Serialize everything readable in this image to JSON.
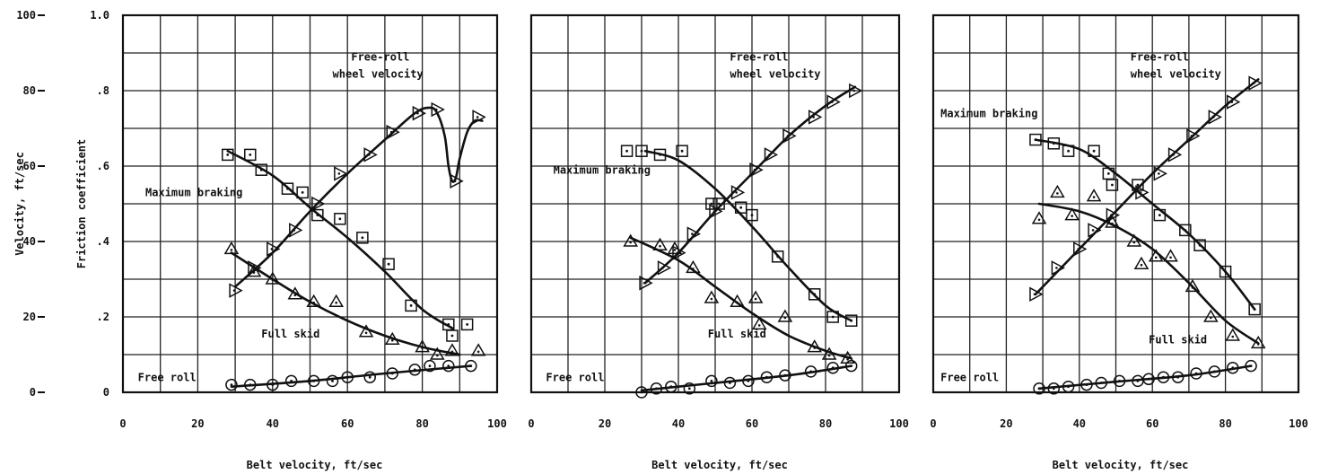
{
  "chart_data": [
    {
      "type": "scatter",
      "panel": 1,
      "xlabel": "Belt velocity, ft/sec",
      "y_left_label": "Velocity, ft/sec",
      "y_right_label": "Friction coefficient",
      "xlim": [
        0,
        100
      ],
      "y_velocity_lim": [
        0,
        100
      ],
      "y_friction_lim": [
        0,
        1.0
      ],
      "x_ticks": [
        "0",
        "20",
        "40",
        "60",
        "80",
        "100"
      ],
      "y_velocity_ticks": [
        "0",
        "20",
        "40",
        "60",
        "80",
        "100"
      ],
      "y_friction_ticks": [
        "0",
        ".2",
        ".4",
        ".6",
        ".8",
        "1.0"
      ],
      "grid": true,
      "annotations": [
        {
          "text": "Free-roll",
          "x": 61,
          "y": 88
        },
        {
          "text": "wheel velocity",
          "x": 56,
          "y": 83.5
        },
        {
          "text": "Maximum braking",
          "x": 6,
          "y": 52
        },
        {
          "text": "Full skid",
          "x": 37,
          "y": 14.5
        },
        {
          "text": "Free roll",
          "x": 4,
          "y": 3
        }
      ],
      "series": [
        {
          "name": "Free-roll wheel velocity",
          "axis": "velocity",
          "marker": "triangle-right",
          "x": [
            30,
            35,
            40,
            46,
            52,
            58,
            66,
            72,
            79,
            84,
            89,
            95
          ],
          "y": [
            27,
            33,
            38,
            43,
            50,
            58,
            63,
            69,
            74,
            75,
            56,
            73
          ]
        },
        {
          "name": "Maximum braking",
          "axis": "friction",
          "marker": "square",
          "x": [
            28,
            34,
            37,
            44,
            48,
            52,
            58,
            64,
            71,
            77,
            87,
            88,
            92
          ],
          "y": [
            0.63,
            0.63,
            0.59,
            0.54,
            0.53,
            0.47,
            0.46,
            0.41,
            0.34,
            0.23,
            0.18,
            0.15,
            0.18
          ]
        },
        {
          "name": "Full skid",
          "axis": "friction",
          "marker": "triangle",
          "x": [
            29,
            35,
            40,
            46,
            51,
            57,
            65,
            72,
            80,
            84,
            88,
            95
          ],
          "y": [
            0.38,
            0.32,
            0.3,
            0.26,
            0.24,
            0.24,
            0.16,
            0.14,
            0.12,
            0.1,
            0.11,
            0.11
          ]
        },
        {
          "name": "Free roll",
          "axis": "friction",
          "marker": "circle",
          "x": [
            29,
            34,
            40,
            45,
            51,
            56,
            60,
            66,
            72,
            78,
            82,
            87,
            93
          ],
          "y": [
            0.02,
            0.02,
            0.02,
            0.03,
            0.03,
            0.03,
            0.04,
            0.04,
            0.05,
            0.06,
            0.07,
            0.07,
            0.07
          ]
        }
      ],
      "curves": [
        {
          "name": "Free-roll wheel velocity curve",
          "axis": "velocity",
          "x": [
            30,
            40,
            50,
            60,
            70,
            78,
            82,
            84,
            86,
            87,
            88,
            89,
            90,
            92,
            94,
            96
          ],
          "y": [
            28,
            37,
            48,
            58,
            67,
            74,
            75.5,
            74,
            68,
            60,
            56,
            57,
            62,
            69,
            72,
            72
          ]
        },
        {
          "name": "Maximum braking curve",
          "axis": "friction",
          "x": [
            28,
            40,
            50,
            60,
            70,
            80,
            88
          ],
          "y": [
            0.64,
            0.575,
            0.49,
            0.41,
            0.32,
            0.22,
            0.17
          ]
        },
        {
          "name": "Full skid curve",
          "axis": "friction",
          "x": [
            29,
            40,
            50,
            60,
            70,
            80,
            90
          ],
          "y": [
            0.37,
            0.3,
            0.24,
            0.19,
            0.15,
            0.12,
            0.1
          ]
        },
        {
          "name": "Free roll curve",
          "axis": "friction",
          "x": [
            29,
            50,
            70,
            93
          ],
          "y": [
            0.015,
            0.03,
            0.05,
            0.07
          ]
        }
      ]
    },
    {
      "type": "scatter",
      "panel": 2,
      "xlabel": "Belt velocity, ft/sec",
      "xlim": [
        0,
        100
      ],
      "y_velocity_lim": [
        0,
        100
      ],
      "y_friction_lim": [
        0,
        1.0
      ],
      "x_ticks": [
        "0",
        "20",
        "40",
        "60",
        "80",
        "100"
      ],
      "grid": true,
      "annotations": [
        {
          "text": "Free-roll",
          "x": 54,
          "y": 88
        },
        {
          "text": "wheel velocity",
          "x": 54,
          "y": 83.5
        },
        {
          "text": "Maximum braking",
          "x": 6,
          "y": 58
        },
        {
          "text": "Full skid",
          "x": 48,
          "y": 14.5
        },
        {
          "text": "Free roll",
          "x": 4,
          "y": 3
        }
      ],
      "series": [
        {
          "name": "Free-roll wheel velocity",
          "axis": "velocity",
          "marker": "triangle-right",
          "x": [
            31,
            36,
            40,
            44,
            50,
            56,
            61,
            65,
            70,
            77,
            82,
            88
          ],
          "y": [
            29,
            33,
            37,
            42,
            48,
            53,
            59,
            63,
            68,
            73,
            77,
            80
          ]
        },
        {
          "name": "Maximum braking",
          "axis": "friction",
          "marker": "square",
          "x": [
            26,
            30,
            35,
            41,
            49,
            51,
            57,
            60,
            67,
            77,
            82,
            87
          ],
          "y": [
            0.64,
            0.64,
            0.63,
            0.64,
            0.5,
            0.5,
            0.49,
            0.47,
            0.36,
            0.26,
            0.2,
            0.19
          ]
        },
        {
          "name": "Full skid",
          "axis": "friction",
          "marker": "triangle",
          "x": [
            27,
            35,
            39,
            44,
            49,
            56,
            61,
            62,
            69,
            77,
            81,
            86
          ],
          "y": [
            0.4,
            0.39,
            0.38,
            0.33,
            0.25,
            0.24,
            0.25,
            0.18,
            0.2,
            0.12,
            0.1,
            0.09
          ]
        },
        {
          "name": "Free roll",
          "axis": "friction",
          "marker": "circle",
          "x": [
            30,
            34,
            38,
            43,
            49,
            54,
            59,
            64,
            69,
            76,
            82,
            87
          ],
          "y": [
            0.0,
            0.01,
            0.015,
            0.01,
            0.03,
            0.025,
            0.03,
            0.04,
            0.045,
            0.055,
            0.065,
            0.07
          ]
        }
      ],
      "curves": [
        {
          "name": "Free-roll wheel velocity curve",
          "axis": "velocity",
          "x": [
            31,
            40,
            50,
            60,
            70,
            80,
            88
          ],
          "y": [
            29,
            37,
            48,
            58,
            68,
            76,
            81
          ]
        },
        {
          "name": "Maximum braking curve",
          "axis": "friction",
          "x": [
            31,
            40,
            50,
            60,
            70,
            80,
            87
          ],
          "y": [
            0.64,
            0.615,
            0.54,
            0.44,
            0.33,
            0.23,
            0.19
          ]
        },
        {
          "name": "Full skid curve",
          "axis": "friction",
          "x": [
            27,
            40,
            50,
            60,
            70,
            80,
            87
          ],
          "y": [
            0.41,
            0.35,
            0.28,
            0.21,
            0.15,
            0.11,
            0.09
          ]
        },
        {
          "name": "Free roll curve",
          "axis": "friction",
          "x": [
            30,
            50,
            70,
            87
          ],
          "y": [
            0.005,
            0.025,
            0.045,
            0.07
          ]
        }
      ]
    },
    {
      "type": "scatter",
      "panel": 3,
      "xlabel": "Belt velocity, ft/sec",
      "xlim": [
        0,
        100
      ],
      "y_velocity_lim": [
        0,
        100
      ],
      "y_friction_lim": [
        0,
        1.0
      ],
      "x_ticks": [
        "0",
        "20",
        "40",
        "60",
        "80",
        "100"
      ],
      "grid": true,
      "annotations": [
        {
          "text": "Free-roll",
          "x": 54,
          "y": 88
        },
        {
          "text": "wheel velocity",
          "x": 54,
          "y": 83.5
        },
        {
          "text": "Maximum braking",
          "x": 2,
          "y": 73
        },
        {
          "text": "Full skid",
          "x": 59,
          "y": 13
        },
        {
          "text": "Free roll",
          "x": 2,
          "y": 3
        }
      ],
      "series": [
        {
          "name": "Free-roll wheel velocity",
          "axis": "velocity",
          "marker": "triangle-right",
          "x": [
            28,
            34,
            40,
            44,
            49,
            57,
            62,
            66,
            71,
            77,
            82,
            88
          ],
          "y": [
            26,
            33,
            38,
            43,
            47,
            53,
            58,
            63,
            68,
            73,
            77,
            82
          ]
        },
        {
          "name": "Maximum braking",
          "axis": "friction",
          "marker": "square",
          "x": [
            28,
            33,
            37,
            44,
            48,
            49,
            56,
            62,
            69,
            73,
            80,
            88
          ],
          "y": [
            0.67,
            0.66,
            0.64,
            0.64,
            0.58,
            0.55,
            0.55,
            0.47,
            0.43,
            0.39,
            0.32,
            0.22
          ]
        },
        {
          "name": "Full skid",
          "axis": "friction",
          "marker": "triangle",
          "x": [
            29,
            34,
            38,
            44,
            49,
            55,
            57,
            61,
            65,
            71,
            76,
            82,
            89
          ],
          "y": [
            0.46,
            0.53,
            0.47,
            0.52,
            0.45,
            0.4,
            0.34,
            0.36,
            0.36,
            0.28,
            0.2,
            0.15,
            0.13
          ]
        },
        {
          "name": "Free roll",
          "axis": "friction",
          "marker": "circle",
          "x": [
            29,
            33,
            37,
            42,
            46,
            51,
            56,
            59,
            63,
            67,
            72,
            77,
            82,
            87
          ],
          "y": [
            0.01,
            0.01,
            0.015,
            0.02,
            0.025,
            0.03,
            0.03,
            0.035,
            0.04,
            0.04,
            0.05,
            0.055,
            0.065,
            0.07
          ]
        }
      ],
      "curves": [
        {
          "name": "Free-roll wheel velocity curve",
          "axis": "velocity",
          "x": [
            28,
            40,
            50,
            60,
            70,
            80,
            89
          ],
          "y": [
            26,
            38,
            48,
            58,
            67,
            76,
            83
          ]
        },
        {
          "name": "Maximum braking curve",
          "axis": "friction",
          "x": [
            28,
            40,
            50,
            60,
            70,
            80,
            88
          ],
          "y": [
            0.67,
            0.645,
            0.58,
            0.5,
            0.42,
            0.32,
            0.22
          ]
        },
        {
          "name": "Full skid curve",
          "axis": "friction",
          "x": [
            29,
            40,
            50,
            60,
            70,
            80,
            89
          ],
          "y": [
            0.5,
            0.48,
            0.44,
            0.38,
            0.29,
            0.19,
            0.13
          ]
        },
        {
          "name": "Free roll curve",
          "axis": "friction",
          "x": [
            29,
            50,
            70,
            87
          ],
          "y": [
            0.01,
            0.028,
            0.045,
            0.07
          ]
        }
      ]
    }
  ]
}
